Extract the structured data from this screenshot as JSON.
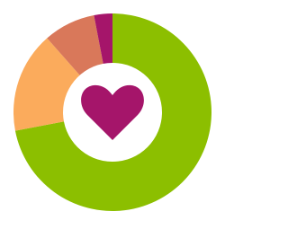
{
  "chart_data": {
    "type": "donut",
    "values": [
      72,
      16.5,
      8.5,
      3
    ],
    "colors": [
      "#8cbf00",
      "#fbab5c",
      "#d9785a",
      "#a5156a"
    ]
  }
}
